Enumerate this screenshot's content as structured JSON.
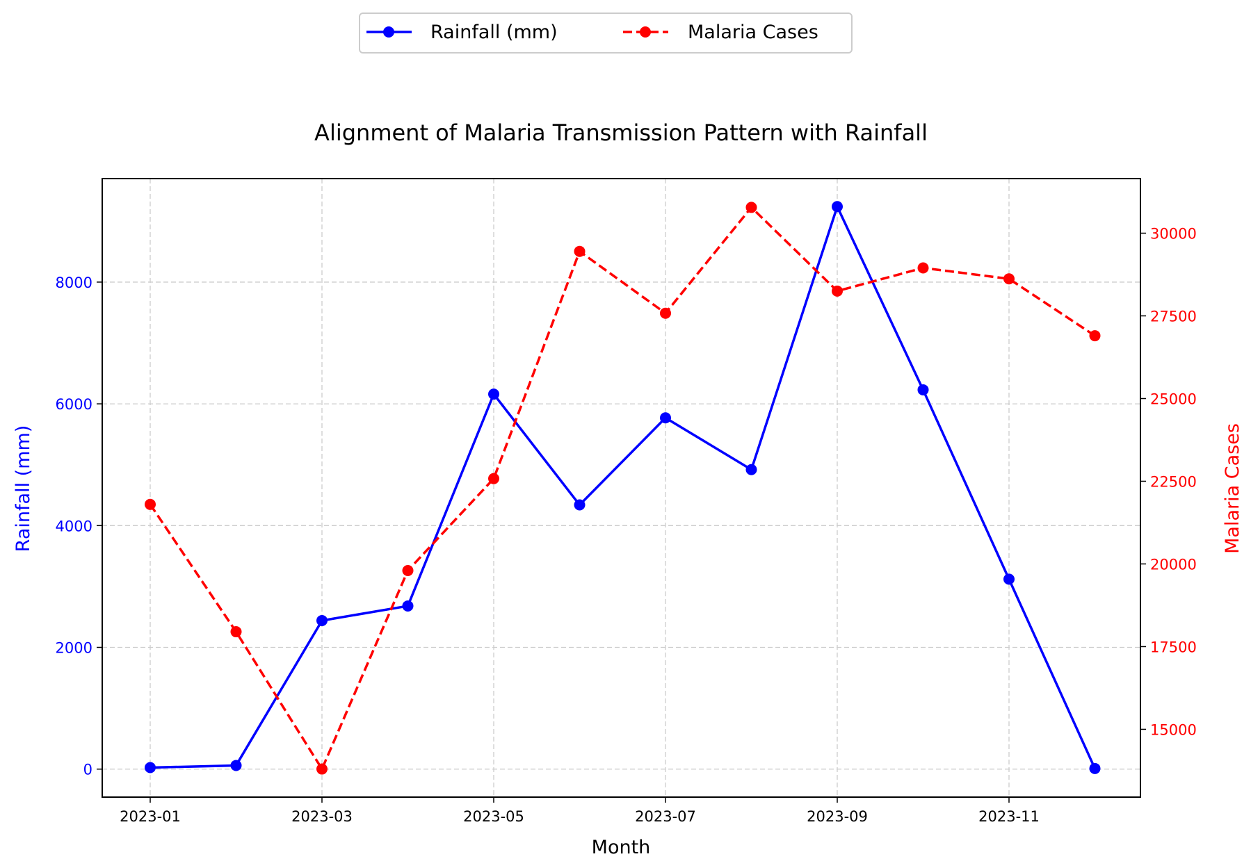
{
  "chart_data": {
    "type": "line",
    "title": "Alignment of Malaria Transmission Pattern with Rainfall",
    "xlabel": "Month",
    "x": [
      "2023-01",
      "2023-02",
      "2023-03",
      "2023-04",
      "2023-05",
      "2023-06",
      "2023-07",
      "2023-08",
      "2023-09",
      "2023-10",
      "2023-11",
      "2023-12"
    ],
    "x_tick_labels": [
      "2023-01",
      "2023-03",
      "2023-05",
      "2023-07",
      "2023-09",
      "2023-11"
    ],
    "grid": true,
    "legend_position": "top-center",
    "series": [
      {
        "name": "Rainfall (mm)",
        "axis": "left",
        "color": "#0000ff",
        "line_style": "solid",
        "marker": "circle",
        "values": [
          25,
          60,
          2440,
          2680,
          6160,
          4340,
          5770,
          4920,
          9240,
          6230,
          3120,
          10
        ]
      },
      {
        "name": "Malaria Cases",
        "axis": "right",
        "color": "#ff0000",
        "line_style": "dashed",
        "marker": "circle",
        "values": [
          21800,
          17950,
          13800,
          19800,
          22580,
          29450,
          27580,
          30780,
          28250,
          28950,
          28620,
          26900
        ]
      }
    ],
    "y_left": {
      "label": "Rainfall (mm)",
      "color": "#0000ff",
      "ylim": [
        -460,
        9700
      ],
      "ticks": [
        0,
        2000,
        4000,
        6000,
        8000
      ]
    },
    "y_right": {
      "label": "Malaria Cases",
      "color": "#ff0000",
      "ylim": [
        12950,
        31650
      ],
      "ticks": [
        15000,
        17500,
        20000,
        22500,
        25000,
        27500,
        30000
      ]
    }
  }
}
